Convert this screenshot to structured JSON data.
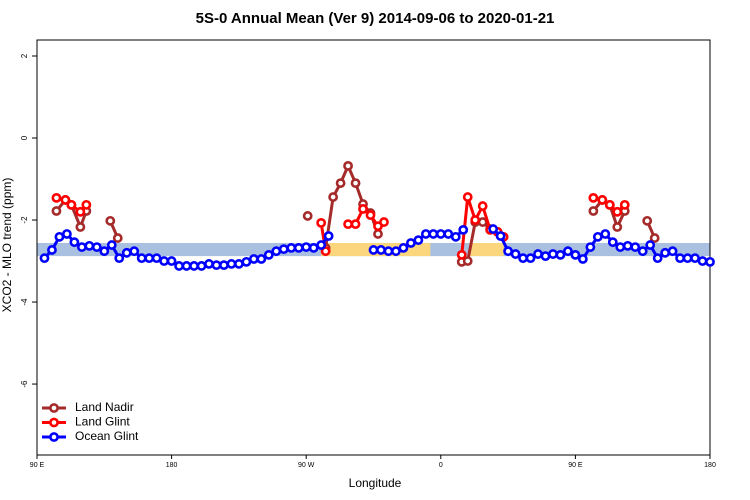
{
  "chart_data": {
    "type": "line",
    "title": "5S-0 Annual Mean (Ver 9)   2014-09-06 to 2020-01-21",
    "xlabel": "Longitude",
    "ylabel": "XCO2 - MLO trend (ppm)",
    "xlim": [
      90,
      540
    ],
    "xticks": [
      {
        "value": 90,
        "label": "90 E"
      },
      180,
      {
        "value": 270,
        "label": "90 W"
      },
      {
        "value": 360,
        "label": "0"
      },
      {
        "value": 450,
        "label": "90 E"
      },
      {
        "value": 540,
        "label": "180"
      }
    ],
    "ylim": [
      -7.73,
      2.39
    ],
    "yticks": [
      2,
      0,
      -2,
      -4,
      -6
    ],
    "grid": false,
    "legend": "bottom-left",
    "band": {
      "ylim": [
        -2.88,
        -2.56
      ],
      "color": "#a9c0e0"
    },
    "highlights": {
      "ranges": [
        [
          280,
          353
        ],
        [
          379,
          402
        ]
      ],
      "color": "#fbd67c"
    },
    "series": [
      {
        "name": "Land Nadir",
        "color": "#a52a2a",
        "x": [
          103,
          109,
          113,
          119,
          123,
          130,
          139,
          144,
          200,
          271,
          276,
          283,
          288,
          293,
          298,
          303,
          308,
          313,
          318,
          340,
          374,
          378,
          383,
          388,
          393,
          398,
          420,
          462,
          468,
          473,
          478,
          483,
          490,
          498,
          503
        ],
        "values": [
          -1.78,
          -1.51,
          -1.63,
          -2.17,
          -1.78,
          null,
          -2.02,
          -2.44,
          null,
          -1.9,
          null,
          -2.68,
          -1.44,
          -1.1,
          -0.68,
          -1.1,
          -1.61,
          -1.83,
          -2.34,
          null,
          -3.02,
          -3.0,
          -2.05,
          -2.05,
          -2.22,
          -2.29,
          null,
          -1.78,
          -1.51,
          -1.63,
          -2.17,
          -1.78,
          null,
          -2.02,
          -2.44
        ]
      },
      {
        "name": "Land Glint",
        "color": "#ff0000",
        "x": [
          103,
          109,
          113,
          119,
          123,
          200,
          280,
          283,
          290,
          298,
          303,
          308,
          313,
          318,
          322,
          340,
          374,
          378,
          383,
          388,
          393,
          398,
          402,
          430,
          462,
          468,
          473,
          478,
          483
        ],
        "values": [
          -1.46,
          -1.51,
          -1.63,
          -1.8,
          -1.63,
          null,
          -2.07,
          -2.76,
          null,
          -2.1,
          -2.1,
          -1.73,
          -1.88,
          -2.15,
          -2.05,
          null,
          -2.85,
          -1.44,
          -2.0,
          -1.66,
          -2.24,
          -2.29,
          -2.41,
          null,
          -1.46,
          -1.51,
          -1.63,
          -1.8,
          -1.63
        ]
      },
      {
        "name": "Ocean Glint",
        "color": "#0000ff",
        "x": [
          95,
          100,
          105,
          110,
          115,
          120,
          125,
          130,
          135,
          140,
          145,
          150,
          155,
          160,
          165,
          170,
          175,
          180,
          185,
          190,
          195,
          200,
          205,
          210,
          215,
          220,
          225,
          230,
          235,
          240,
          245,
          250,
          255,
          260,
          265,
          270,
          275,
          280,
          285,
          300,
          315,
          320,
          325,
          330,
          335,
          340,
          345,
          350,
          355,
          360,
          365,
          370,
          375,
          385,
          395,
          400,
          405,
          410,
          415,
          420,
          425,
          430,
          435,
          440,
          445,
          450,
          455,
          460,
          465,
          470,
          475,
          480,
          485,
          490,
          495,
          500,
          505,
          510,
          515,
          520,
          525,
          530,
          535,
          540
        ],
        "values": [
          -2.93,
          -2.73,
          -2.41,
          -2.34,
          -2.54,
          -2.66,
          -2.63,
          -2.66,
          -2.76,
          -2.61,
          -2.93,
          -2.8,
          -2.76,
          -2.93,
          -2.93,
          -2.93,
          -3.0,
          -3.0,
          -3.12,
          -3.12,
          -3.12,
          -3.12,
          -3.07,
          -3.1,
          -3.1,
          -3.07,
          -3.07,
          -3.02,
          -2.95,
          -2.95,
          -2.85,
          -2.76,
          -2.71,
          -2.68,
          -2.68,
          -2.66,
          -2.68,
          -2.61,
          -2.39,
          null,
          -2.73,
          -2.73,
          -2.76,
          -2.76,
          -2.68,
          -2.56,
          -2.49,
          -2.34,
          -2.34,
          -2.34,
          -2.34,
          -2.41,
          -2.24,
          null,
          -2.22,
          -2.39,
          -2.76,
          -2.83,
          -2.93,
          -2.93,
          -2.83,
          -2.88,
          -2.83,
          -2.85,
          -2.76,
          -2.85,
          -2.95,
          -2.66,
          -2.41,
          -2.34,
          -2.54,
          -2.66,
          -2.63,
          -2.66,
          -2.76,
          -2.61,
          -2.93,
          -2.8,
          -2.76,
          -2.93,
          -2.93,
          -2.93,
          -3.0,
          -3.02
        ]
      }
    ]
  }
}
